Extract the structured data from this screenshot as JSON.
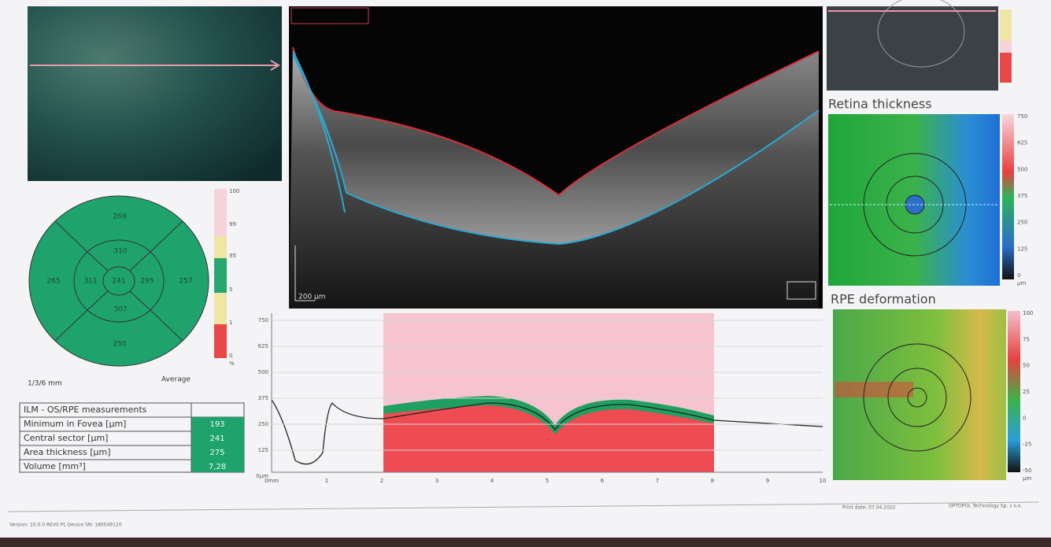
{
  "sector_map": {
    "outer_top": 269,
    "outer_left": 265,
    "outer_right": 257,
    "outer_bottom": 250,
    "inner_top": 310,
    "inner_left": 311,
    "inner_right": 295,
    "inner_bottom": 307,
    "center": 241,
    "scale": [
      "100",
      "99",
      "95",
      "5",
      "1",
      "0",
      "%"
    ],
    "diameters": "1/3/6 mm",
    "mode": "Average"
  },
  "measurements": {
    "title": "ILM - OS/RPE measurements",
    "rows": [
      [
        "Minimum in Fovea [µm]",
        "193"
      ],
      [
        "Central sector [µm]",
        "241"
      ],
      [
        "Area thickness [µm]",
        "275"
      ],
      [
        "Volume [mm³]",
        "7,28"
      ]
    ]
  },
  "bscan": {
    "scale_label": "200 µm"
  },
  "profile": {
    "yticks": [
      "750",
      "625",
      "500",
      "375",
      "250",
      "125",
      "0µm"
    ],
    "xticks": [
      "0mm",
      "1",
      "2",
      "3",
      "4",
      "5",
      "6",
      "7",
      "8",
      "9",
      "10"
    ]
  },
  "retina_thickness": {
    "title": "Retina thickness",
    "scale": [
      "750",
      "625",
      "500",
      "375",
      "250",
      "125",
      "0",
      "µm"
    ]
  },
  "rpe_deformation": {
    "title": "RPE deformation",
    "scale": [
      "100",
      "75",
      "50",
      "25",
      "0",
      "-25",
      "-50",
      "µm"
    ]
  },
  "footer": {
    "left": "Version: 10.0.0   REV0 PL   Device SN: 180049110",
    "print_date": "Print date: 07.04.2022",
    "company": "OPTOPOL Technology Sp. z o.o."
  }
}
